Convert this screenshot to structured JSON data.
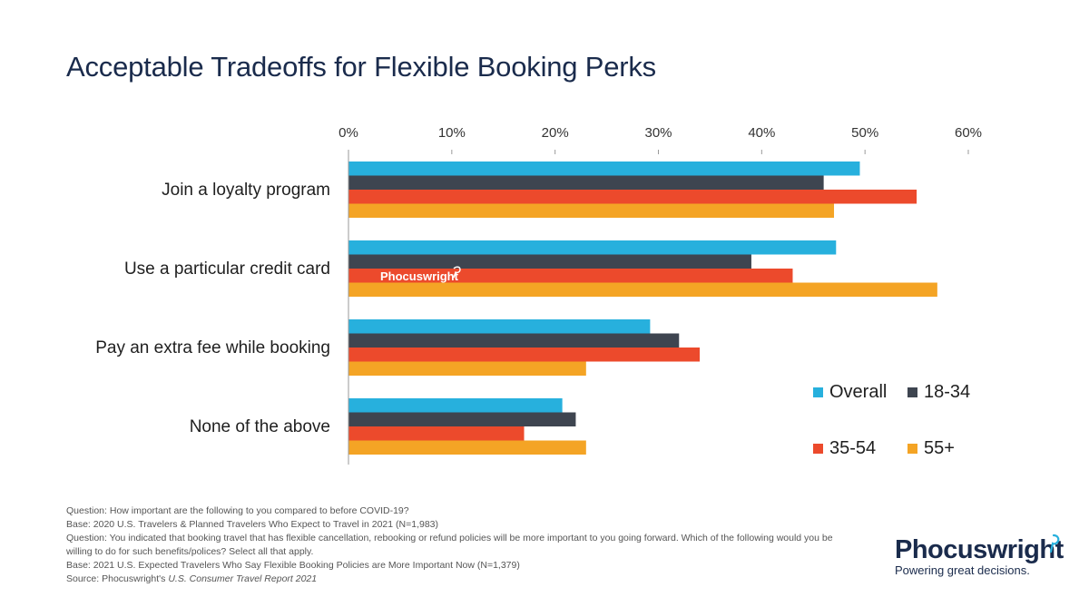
{
  "chart_data": {
    "type": "bar",
    "orientation": "horizontal",
    "title": "Acceptable Tradeoffs for Flexible Booking Perks",
    "categories": [
      "Join a loyalty program",
      "Use a particular credit card",
      "Pay an extra fee while booking",
      "None of the above"
    ],
    "series": [
      {
        "name": "Overall",
        "color": "#27b0dd",
        "values": [
          49.5,
          47.2,
          29.2,
          20.7
        ]
      },
      {
        "name": "18-34",
        "color": "#3e4550",
        "values": [
          46.0,
          39.0,
          32.0,
          22.0
        ]
      },
      {
        "name": "35-54",
        "color": "#ec4a2c",
        "values": [
          55.0,
          43.0,
          34.0,
          17.0
        ]
      },
      {
        "name": "55+",
        "color": "#f4a425",
        "values": [
          47.0,
          57.0,
          23.0,
          23.0
        ]
      }
    ],
    "xlim": [
      0,
      60
    ],
    "x_ticks": [
      "0%",
      "10%",
      "20%",
      "30%",
      "40%",
      "50%",
      "60%"
    ],
    "axis_position": "top",
    "legend_placement": "bottom-right",
    "watermark": "Phocuswright"
  },
  "notes": {
    "q1": "Question: How important are the following to you compared to before COVID-19?",
    "b1": "Base: 2020 U.S. Travelers & Planned Travelers Who Expect to Travel in 2021 (N=1,983)",
    "q2": "Question: You indicated that booking travel that has flexible cancellation, rebooking or refund policies will be more important to you going forward. Which of the following would you be willing to do for such benefits/polices? Select all that apply.",
    "b2": "Base: 2021 U.S. Expected Travelers Who Say Flexible Booking Policies are More Important Now (N=1,379)",
    "source_prefix": "Source: Phocuswright's ",
    "source_title": "U.S. Consumer Travel Report 2021"
  },
  "logo": {
    "word": "Phocuswright",
    "tagline": "Powering great decisions."
  }
}
